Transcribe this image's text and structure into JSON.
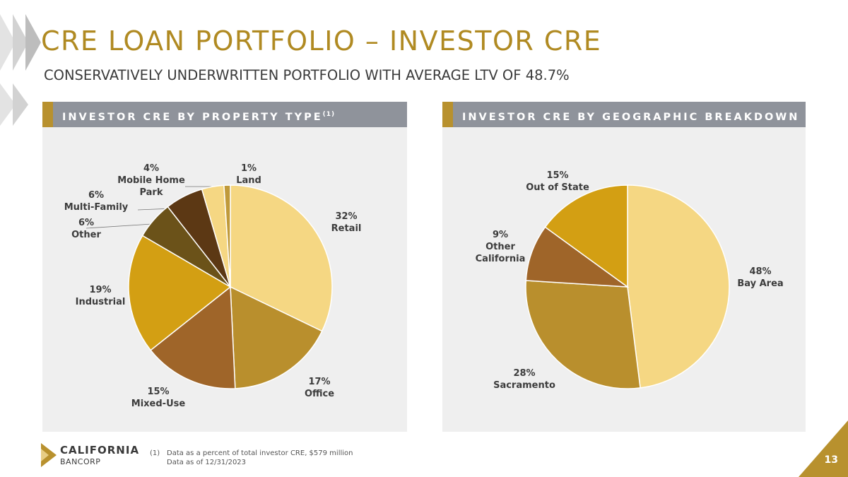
{
  "header": {
    "title": "CRE LOAN PORTFOLIO – INVESTOR CRE",
    "subtitle": "CONSERVATIVELY UNDERWRITTEN PORTFOLIO WITH AVERAGE LTV OF 48.7%"
  },
  "panels": [
    {
      "title": "INVESTOR CRE BY PROPERTY TYPE",
      "note": "(1)"
    },
    {
      "title": "INVESTOR CRE BY GEOGRAPHIC BREAKDOWN",
      "note": "(1)"
    }
  ],
  "chart_data": [
    {
      "type": "pie",
      "title": "INVESTOR CRE BY PROPERTY TYPE",
      "start_angle_deg": 0,
      "slices": [
        {
          "label": "Retail",
          "pct_text": "32%",
          "value": 32,
          "color": "#f5d783"
        },
        {
          "label": "Office",
          "pct_text": "17%",
          "value": 17,
          "color": "#b98f2d"
        },
        {
          "label": "Mixed-Use",
          "pct_text": "15%",
          "value": 15,
          "color": "#9f6529"
        },
        {
          "label": "Industrial",
          "pct_text": "19%",
          "value": 19,
          "color": "#d39f13"
        },
        {
          "label": "Other",
          "pct_text": "6%",
          "value": 6,
          "color": "#6b5219"
        },
        {
          "label": "Multi-Family",
          "pct_text": "6%",
          "value": 6,
          "color": "#5c3814"
        },
        {
          "label": "Mobile Home Park",
          "pct_text": "4%",
          "value": 3.5,
          "color": "#f5d783"
        },
        {
          "label": "Land",
          "pct_text": "1%",
          "value": 1,
          "color": "#c09a3a"
        }
      ]
    },
    {
      "type": "pie",
      "title": "INVESTOR CRE BY GEOGRAPHIC BREAKDOWN",
      "start_angle_deg": 0,
      "slices": [
        {
          "label": "Bay Area",
          "pct_text": "48%",
          "value": 48,
          "color": "#f5d783"
        },
        {
          "label": "Sacramento",
          "pct_text": "28%",
          "value": 28,
          "color": "#b98f2d"
        },
        {
          "label": "Other California",
          "pct_text": "9%",
          "value": 9,
          "color": "#9f6529"
        },
        {
          "label": "Out of State",
          "pct_text": "15%",
          "value": 15,
          "color": "#d39f13"
        }
      ]
    }
  ],
  "footer": {
    "brand_line1": "CALIFORNIA",
    "brand_line2": "BANCORP",
    "footnote_marker": "(1)",
    "footnote": "Data as a percent of total investor CRE, $579 million",
    "date_note": "Data as of 12/31/2023",
    "page_number": "13"
  }
}
